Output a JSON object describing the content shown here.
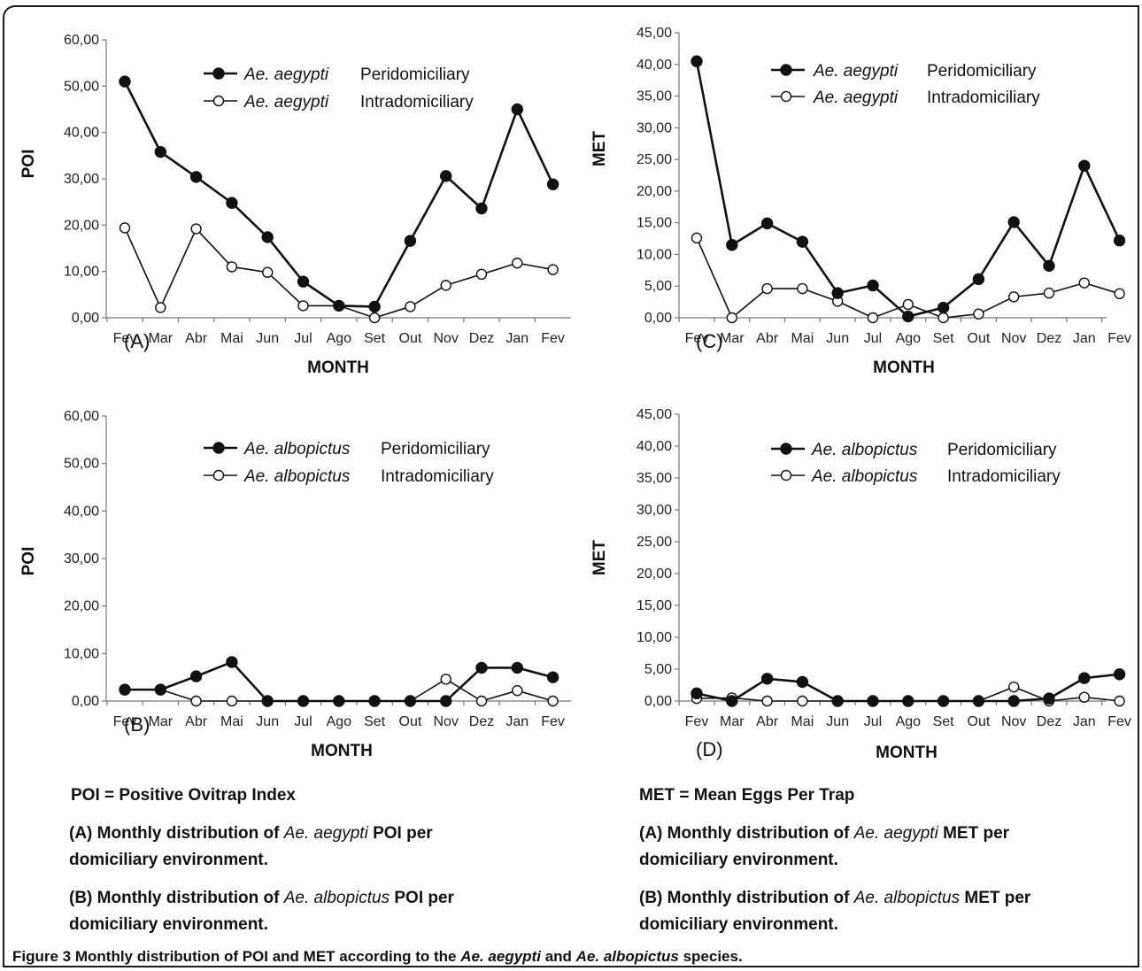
{
  "chart_data": [
    {
      "type": "line",
      "panel": "(A)",
      "xlabel": "MONTH",
      "ylabel": "POI",
      "ylim": [
        0,
        60
      ],
      "yticks": [
        "0,00",
        "10,00",
        "20,00",
        "30,00",
        "40,00",
        "50,00",
        "60,00"
      ],
      "categories": [
        "Fev",
        "Mar",
        "Abr",
        "Mai",
        "Jun",
        "Jul",
        "Ago",
        "Set",
        "Out",
        "Nov",
        "Dez",
        "Jan",
        "Fev"
      ],
      "series": [
        {
          "name": "Ae. aegypti Peridomiciliary",
          "species": "Ae. aegypti",
          "environment": "Peridomiciliary",
          "marker": "filled",
          "values": [
            51,
            35.8,
            30.4,
            24.8,
            17.4,
            7.8,
            2.6,
            2.4,
            16.6,
            30.6,
            23.6,
            45,
            28.8
          ]
        },
        {
          "name": "Ae. aegypti Intradomiciliary",
          "species": "Ae. aegypti",
          "environment": "Intradomiciliary",
          "marker": "open",
          "values": [
            19.4,
            2.2,
            19.2,
            11,
            9.8,
            2.6,
            2.6,
            0,
            2.4,
            7,
            9.4,
            11.8,
            10.4
          ]
        }
      ]
    },
    {
      "type": "line",
      "panel": "(B)",
      "xlabel": "MONTH",
      "ylabel": "POI",
      "ylim": [
        0,
        60
      ],
      "yticks": [
        "0,00",
        "10,00",
        "20,00",
        "30,00",
        "40,00",
        "50,00",
        "60,00"
      ],
      "categories": [
        "Fev",
        "Mar",
        "Abr",
        "Mai",
        "Jun",
        "Jul",
        "Ago",
        "Set",
        "Out",
        "Nov",
        "Dez",
        "Jan",
        "Fev"
      ],
      "series": [
        {
          "name": "Ae. albopictus Peridomiciliary",
          "species": "Ae. albopictus",
          "environment": "Peridomiciliary",
          "marker": "filled",
          "values": [
            2.4,
            2.4,
            5.2,
            8.2,
            0,
            0,
            0,
            0,
            0,
            0,
            7,
            7,
            5
          ]
        },
        {
          "name": "Ae. albopictus Intradomiciliary",
          "species": "Ae. albopictus",
          "environment": "Intradomiciliary",
          "marker": "open",
          "values": [
            2.4,
            2.4,
            0,
            0,
            0,
            0,
            0,
            0,
            0,
            4.6,
            0,
            2.2,
            0
          ]
        }
      ]
    },
    {
      "type": "line",
      "panel": "(C)",
      "xlabel": "MONTH",
      "ylabel": "MET",
      "ylim": [
        0,
        45
      ],
      "yticks": [
        "0,00",
        "5,00",
        "10,00",
        "15,00",
        "20,00",
        "25,00",
        "30,00",
        "35,00",
        "40,00",
        "45,00"
      ],
      "categories": [
        "Fev",
        "Mar",
        "Abr",
        "Mai",
        "Jun",
        "Jul",
        "Ago",
        "Set",
        "Out",
        "Nov",
        "Dez",
        "Jan",
        "Fev"
      ],
      "series": [
        {
          "name": "Ae. aegypti Peridomiciliary",
          "species": "Ae. aegypti",
          "environment": "Peridomiciliary",
          "marker": "filled",
          "values": [
            40.5,
            11.5,
            14.9,
            12,
            3.9,
            5.1,
            0.2,
            1.6,
            6.1,
            15.1,
            8.2,
            24,
            12.2
          ]
        },
        {
          "name": "Ae. aegypti Intradomiciliary",
          "species": "Ae. aegypti",
          "environment": "Intradomiciliary",
          "marker": "open",
          "values": [
            12.6,
            0,
            4.6,
            4.6,
            2.6,
            0,
            2.1,
            0,
            0.6,
            3.3,
            3.9,
            5.5,
            3.8
          ]
        }
      ]
    },
    {
      "type": "line",
      "panel": "(D)",
      "xlabel": "MONTH",
      "ylabel": "MET",
      "ylim": [
        0,
        45
      ],
      "yticks": [
        "0,00",
        "5,00",
        "10,00",
        "15,00",
        "20,00",
        "25,00",
        "30,00",
        "35,00",
        "40,00",
        "45,00"
      ],
      "categories": [
        "Fev",
        "Mar",
        "Abr",
        "Mai",
        "Jun",
        "Jul",
        "Ago",
        "Set",
        "Out",
        "Nov",
        "Dez",
        "Jan",
        "Fev"
      ],
      "series": [
        {
          "name": "Ae. albopictus Peridomiciliary",
          "species": "Ae. albopictus",
          "environment": "Peridomiciliary",
          "marker": "filled",
          "values": [
            1.2,
            0,
            3.5,
            3,
            0,
            0,
            0,
            0,
            0,
            0,
            0.4,
            3.6,
            4.2
          ]
        },
        {
          "name": "Ae. albopictus Intradomiciliary",
          "species": "Ae. albopictus",
          "environment": "Intradomiciliary",
          "marker": "open",
          "values": [
            0.4,
            0.5,
            0,
            0,
            0,
            0,
            0,
            0,
            0,
            2.2,
            0,
            0.6,
            0
          ]
        }
      ]
    }
  ],
  "captions": {
    "left": {
      "definition": "POI = Positive Ovitrap Index",
      "a_prefix": "(A) Monthly distribution",
      "a_of": "of",
      "a_species": "Ae. aegypti",
      "a_metric": "POI per",
      "a_line2": "domiciliary",
      "a_env": "environment",
      "b_prefix": "(B) Monthly distribution",
      "b_of": "of",
      "b_species": "Ae. albopictus",
      "b_metric": "POI per",
      "b_line2": "domiciliary",
      "b_env": "environment"
    },
    "right": {
      "definition": "MET = Mean Eggs Per Trap",
      "a_prefix": "(A) Monthly distribution",
      "a_of": "of",
      "a_species": "Ae. aegypti",
      "a_metric": "MET per",
      "a_line2": "domiciliary",
      "a_env": "environment",
      "b_prefix": "(B) Monthly distribution",
      "b_of": "of",
      "b_species": "Ae. albopictus",
      "b_metric": "MET per",
      "b_line2": "domiciliary",
      "b_env": "environment"
    },
    "period": "."
  },
  "figure_caption": {
    "label": "Figure 3",
    "text1": "Monthly distribution of POI and MET according to the",
    "species1": "Ae. aegypti",
    "and": "and",
    "species2": "Ae. albopictus",
    "text2": "species."
  }
}
